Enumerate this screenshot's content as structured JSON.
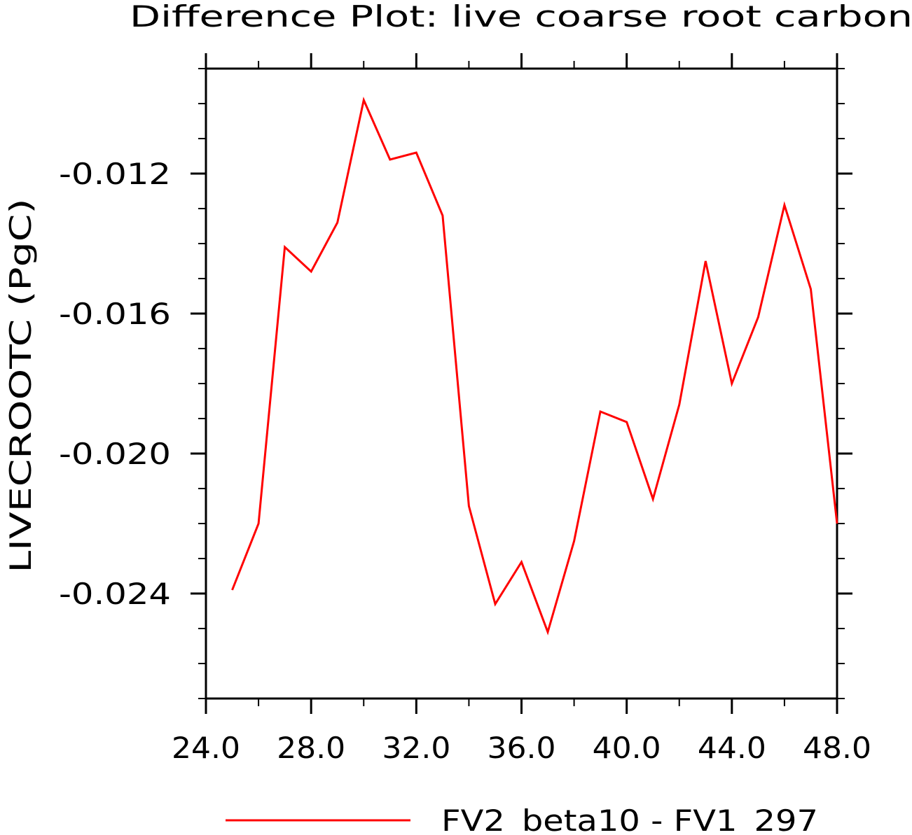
{
  "chart_data": {
    "type": "line",
    "title": "Difference Plot: live coarse root carbon",
    "xlabel": "",
    "ylabel": "LIVECROOTC   (PgC)",
    "xlim": [
      24,
      48
    ],
    "ylim": [
      -0.027,
      -0.009
    ],
    "x_ticks": [
      24,
      28,
      32,
      36,
      40,
      44,
      48
    ],
    "x_tick_labels": [
      "24.0",
      "28.0",
      "32.0",
      "36.0",
      "40.0",
      "44.0",
      "48.0"
    ],
    "x_minor_step": 2,
    "y_ticks": [
      -0.024,
      -0.02,
      -0.016,
      -0.012
    ],
    "y_tick_labels": [
      "-0.024",
      "-0.020",
      "-0.016",
      "-0.012"
    ],
    "y_minor_step": 0.001,
    "grid": false,
    "legend_position": "bottom-center",
    "series": [
      {
        "name": "FV2_beta10 - FV1_297",
        "color": "#ff0000",
        "x": [
          25,
          26,
          27,
          28,
          29,
          30,
          31,
          32,
          33,
          34,
          35,
          36,
          37,
          38,
          39,
          40,
          41,
          42,
          43,
          44,
          45,
          46,
          47,
          48
        ],
        "y": [
          -0.0239,
          -0.022,
          -0.0141,
          -0.0148,
          -0.0134,
          -0.0099,
          -0.0116,
          -0.0114,
          -0.0132,
          -0.0215,
          -0.0243,
          -0.0231,
          -0.0251,
          -0.0225,
          -0.0188,
          -0.0191,
          -0.0213,
          -0.0186,
          -0.0145,
          -0.018,
          -0.0161,
          -0.0129,
          -0.0153,
          -0.022
        ]
      }
    ]
  }
}
